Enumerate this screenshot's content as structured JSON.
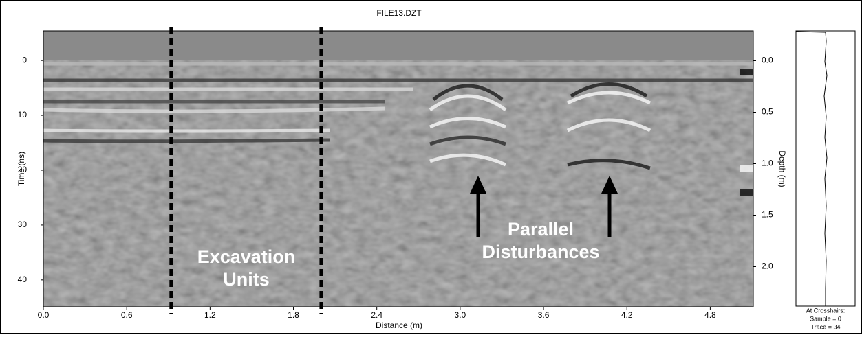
{
  "chart_data": {
    "type": "radargram",
    "title": "FILE13.DZT",
    "x_label": "Distance (m)",
    "y_label": "Time (ns)",
    "y2_label": "Depth (m)",
    "xlim": [
      0,
      5.11
    ],
    "xticks": [
      {
        "value": 0,
        "label": "0.0"
      },
      {
        "value": 0.6,
        "label": "0.6"
      },
      {
        "value": 1.2,
        "label": "1.2"
      },
      {
        "value": 1.8,
        "label": "1.8"
      },
      {
        "value": 2.4,
        "label": "2.4"
      },
      {
        "value": 3.0,
        "label": "3.0"
      },
      {
        "value": 3.6,
        "label": "3.6"
      },
      {
        "value": 4.2,
        "label": "4.2"
      },
      {
        "value": 4.8,
        "label": "4.8"
      }
    ],
    "ylim": [
      44.9,
      -5.4
    ],
    "yticks": [
      0,
      10,
      20,
      30,
      40
    ],
    "y2lim": [
      2.39,
      -0.29
    ],
    "y2ticks": [
      {
        "value": 0,
        "label": "0.0"
      },
      {
        "value": 0.5,
        "label": "0.5"
      },
      {
        "value": 1.0,
        "label": "1.0"
      },
      {
        "value": 1.5,
        "label": "1.5"
      },
      {
        "value": 2.0,
        "label": "2.0"
      }
    ],
    "boundaries": [
      0.92,
      2.0
    ],
    "annotations": [
      "Excavation",
      "Units",
      "Parallel",
      "Disturbances"
    ],
    "crosshairs": {
      "title": "At Crosshairs:",
      "sample": "Sample = 0",
      "trace": "Trace = 34"
    }
  }
}
